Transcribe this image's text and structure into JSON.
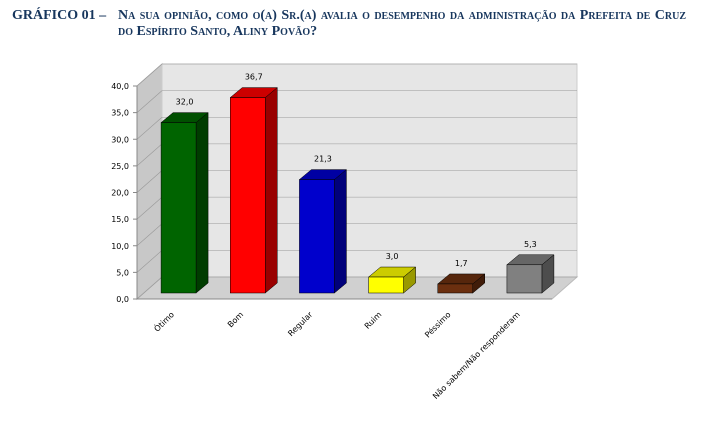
{
  "chart_data": {
    "type": "bar3d",
    "label": "GRÁFICO 01 –",
    "title": "Na sua opinião, como o(a) Sr.(a) avalia o desempenho da administração da Prefeita de Cruz do Espírito Santo, Aliny Povão?",
    "categories": [
      "Ótimo",
      "Bom",
      "Regular",
      "Ruim",
      "Péssimo",
      "Não sabem/Não responderam"
    ],
    "values": [
      32.0,
      36.7,
      21.3,
      3.0,
      1.7,
      5.3
    ],
    "value_labels": [
      "32,0",
      "36,7",
      "21,3",
      "3,0",
      "1,7",
      "5,3"
    ],
    "colors": [
      "#006400",
      "#ff0000",
      "#0000cc",
      "#ffff00",
      "#6b2f0f",
      "#808080"
    ],
    "ylim": [
      0,
      40
    ],
    "yticks": [
      {
        "value": 0,
        "label": "0,0"
      },
      {
        "value": 5,
        "label": "5,0"
      },
      {
        "value": 10,
        "label": "10,0"
      },
      {
        "value": 15,
        "label": "15,0"
      },
      {
        "value": 20,
        "label": "20,0"
      },
      {
        "value": 25,
        "label": "25,0"
      },
      {
        "value": 30,
        "label": "30,0"
      },
      {
        "value": 35,
        "label": "35,0"
      },
      {
        "value": 40,
        "label": "40,0"
      }
    ],
    "grid": true
  }
}
